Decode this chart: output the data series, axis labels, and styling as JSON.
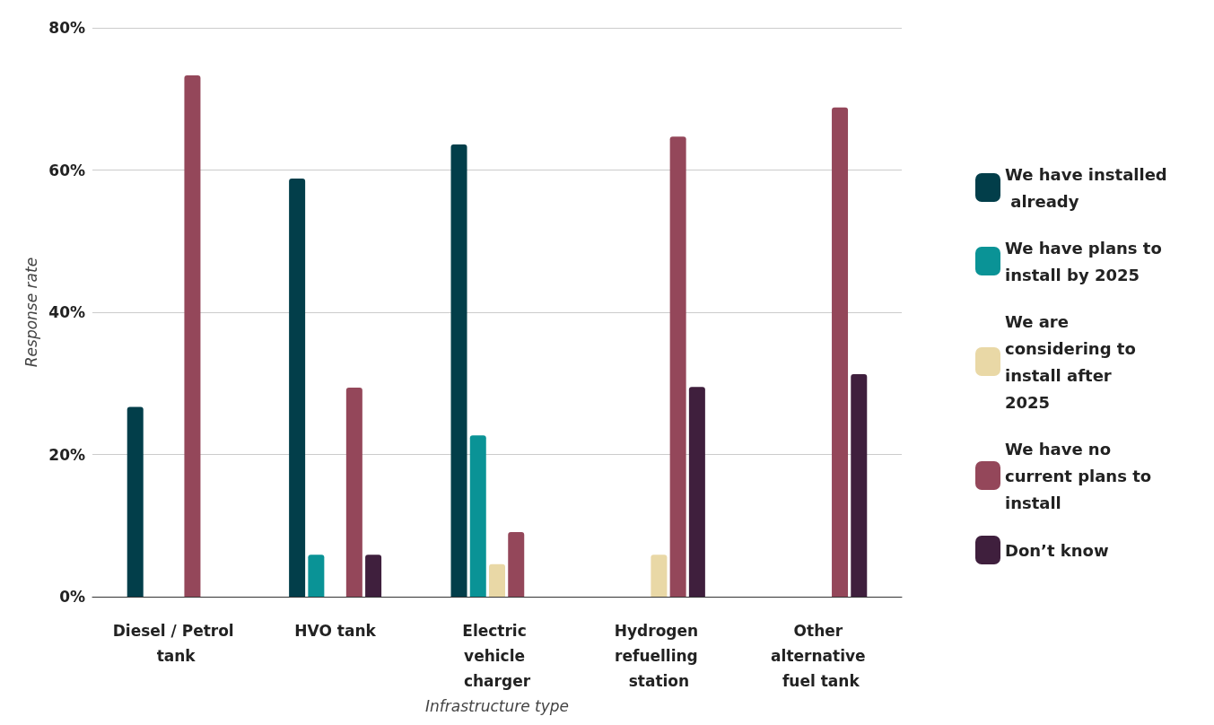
{
  "chart_data": {
    "type": "bar",
    "xlabel": "Infrastructure type",
    "ylabel": "Response rate",
    "categories": [
      "Diesel / Petrol tank",
      "HVO tank",
      "Electric vehicle charger",
      "Hydrogen refuelling station",
      "Other alternative fuel tank"
    ],
    "series": [
      {
        "name": "We have installed already",
        "color": "#023e4a",
        "values": [
          26.7,
          58.8,
          63.6,
          0,
          0
        ]
      },
      {
        "name": "We have plans to install by 2025",
        "color": "#0a9396",
        "values": [
          0,
          5.9,
          22.7,
          0,
          0
        ]
      },
      {
        "name": "We are considering to install after 2025",
        "color": "#e9d8a6",
        "values": [
          0,
          0,
          4.6,
          5.9,
          0
        ]
      },
      {
        "name": "We have no current plans to install",
        "color": "#94475a",
        "values": [
          73.3,
          29.4,
          9.1,
          64.7,
          68.8
        ]
      },
      {
        "name": "Don’t know",
        "color": "#3f1f3d",
        "values": [
          0,
          5.9,
          0,
          29.5,
          31.3
        ]
      }
    ],
    "ylim": [
      0,
      80
    ],
    "yticks": [
      {
        "value": 0,
        "label": "0%"
      },
      {
        "value": 20,
        "label": "20%"
      },
      {
        "value": 40,
        "label": "40%"
      },
      {
        "value": 60,
        "label": "60%"
      },
      {
        "value": 80,
        "label": "80%"
      }
    ],
    "grid": "y",
    "legend": "right"
  }
}
